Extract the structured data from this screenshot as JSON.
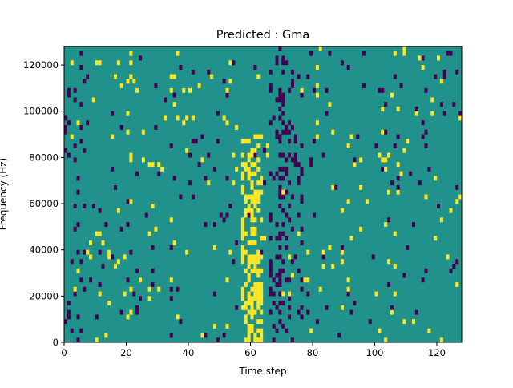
{
  "chart_data": {
    "type": "heatmap",
    "title": "Predicted : Gma",
    "xlabel": "Time step",
    "ylabel": "Frequency (Hz)",
    "xlim": [
      0,
      128
    ],
    "ylim": [
      0,
      128000
    ],
    "x_ticks": [
      0,
      20,
      40,
      60,
      80,
      100,
      120
    ],
    "y_ticks": [
      0,
      20000,
      40000,
      60000,
      80000,
      100000,
      120000
    ],
    "y_tick_labels": [
      "0",
      "20000",
      "40000",
      "60000",
      "80000",
      "100000",
      "120000"
    ],
    "n_time_steps": 128,
    "n_freq_bins": 64,
    "levels": [
      0,
      1,
      2
    ],
    "colors": {
      "0": "#440154",
      "1": "#21918c",
      "2": "#fde725"
    },
    "background_level": 1,
    "seed": 73
  }
}
